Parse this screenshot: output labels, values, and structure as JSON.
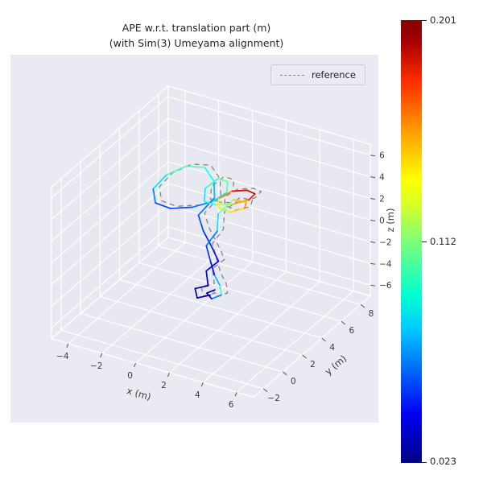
{
  "title": {
    "line1": "APE w.r.t. translation part (m)",
    "line2": "(with Sim(3) Umeyama alignment)"
  },
  "legend": {
    "items": [
      {
        "label": "reference",
        "style": "dashed",
        "color": "#7f7f7f"
      }
    ]
  },
  "colorbar": {
    "colormap": "jet",
    "min": 0.023,
    "mid": 0.112,
    "max": 0.201,
    "tick_labels": [
      "0.201",
      "0.112",
      "0.023"
    ]
  },
  "chart_data": {
    "type": "line",
    "projection": "3d",
    "title": "APE w.r.t. translation part (m) (with Sim(3) Umeyama alignment)",
    "xlabel": "x (m)",
    "ylabel": "y (m)",
    "zlabel": "z (m)",
    "x_ticks": [
      -4,
      -2,
      0,
      2,
      4,
      6
    ],
    "y_ticks": [
      -2,
      0,
      2,
      4,
      6,
      8
    ],
    "z_ticks": [
      -6,
      -4,
      -2,
      0,
      2,
      4,
      6
    ],
    "xlim": [
      -5,
      7
    ],
    "ylim": [
      -3,
      9
    ],
    "zlim": [
      -7,
      7
    ],
    "view": {
      "elev": 30,
      "azim": -60
    },
    "grid": true,
    "background": "#eaeaf2",
    "pane_color": "#e8e8f1",
    "grid_color": "#ffffff",
    "cmin": 0.023,
    "cmax": 0.201,
    "colormap": "jet",
    "series": [
      {
        "name": "APE-colored trajectory",
        "points": [
          [
            2.0,
            1.2,
            -3.1
          ],
          [
            1.4,
            0.9,
            -3.4
          ],
          [
            1.1,
            1.2,
            -2.9
          ],
          [
            1.7,
            1.5,
            -2.6
          ],
          [
            1.3,
            2.0,
            -1.8
          ],
          [
            1.8,
            2.4,
            -1.0
          ],
          [
            1.2,
            2.7,
            -0.1
          ],
          [
            0.6,
            2.9,
            0.9
          ],
          [
            0.2,
            3.1,
            2.0
          ],
          [
            0.7,
            3.9,
            3.2
          ],
          [
            0.2,
            4.7,
            3.9
          ],
          [
            -0.7,
            5.3,
            4.3
          ],
          [
            -1.7,
            5.1,
            4.1
          ],
          [
            -2.4,
            4.3,
            3.6
          ],
          [
            -2.6,
            3.3,
            3.0
          ],
          [
            -2.0,
            2.5,
            2.6
          ],
          [
            -1.0,
            2.3,
            2.7
          ],
          [
            0.1,
            2.7,
            3.0
          ],
          [
            0.9,
            3.3,
            3.4
          ],
          [
            1.3,
            4.1,
            3.8
          ],
          [
            0.9,
            4.9,
            4.0
          ],
          [
            0.2,
            5.1,
            3.8
          ],
          [
            -0.2,
            4.5,
            3.2
          ],
          [
            0.2,
            3.7,
            2.8
          ],
          [
            1.0,
            3.5,
            3.0
          ],
          [
            1.9,
            3.7,
            3.3
          ],
          [
            2.5,
            4.3,
            3.5
          ],
          [
            2.4,
            5.1,
            3.4
          ],
          [
            1.7,
            5.5,
            3.1
          ],
          [
            0.9,
            5.3,
            2.8
          ],
          [
            0.6,
            4.5,
            2.6
          ],
          [
            1.0,
            3.8,
            2.5
          ],
          [
            1.8,
            3.6,
            2.6
          ],
          [
            2.3,
            4.2,
            2.7
          ],
          [
            2.0,
            4.9,
            2.6
          ],
          [
            1.2,
            5.0,
            2.4
          ],
          [
            0.8,
            4.1,
            1.6
          ],
          [
            1.2,
            3.3,
            0.8
          ],
          [
            0.9,
            2.7,
            -0.2
          ],
          [
            1.4,
            2.3,
            -1.2
          ],
          [
            1.8,
            2.0,
            -2.0
          ],
          [
            2.3,
            1.7,
            -2.5
          ],
          [
            2.6,
            1.3,
            -2.9
          ],
          [
            2.2,
            1.0,
            -3.2
          ],
          [
            1.8,
            1.2,
            -3.0
          ],
          [
            2.1,
            1.5,
            -2.8
          ]
        ],
        "errors": [
          0.03,
          0.025,
          0.028,
          0.032,
          0.04,
          0.045,
          0.05,
          0.055,
          0.06,
          0.07,
          0.085,
          0.1,
          0.11,
          0.095,
          0.075,
          0.06,
          0.055,
          0.06,
          0.075,
          0.095,
          0.115,
          0.105,
          0.09,
          0.085,
          0.105,
          0.135,
          0.165,
          0.185,
          0.195,
          0.17,
          0.14,
          0.12,
          0.13,
          0.15,
          0.16,
          0.13,
          0.095,
          0.075,
          0.06,
          0.05,
          0.045,
          0.11,
          0.09,
          0.05,
          0.035,
          0.028
        ]
      },
      {
        "name": "reference",
        "style": "dashed",
        "color": "#7f7f7f",
        "offset": [
          0.25,
          0.2,
          0.15
        ]
      }
    ]
  }
}
